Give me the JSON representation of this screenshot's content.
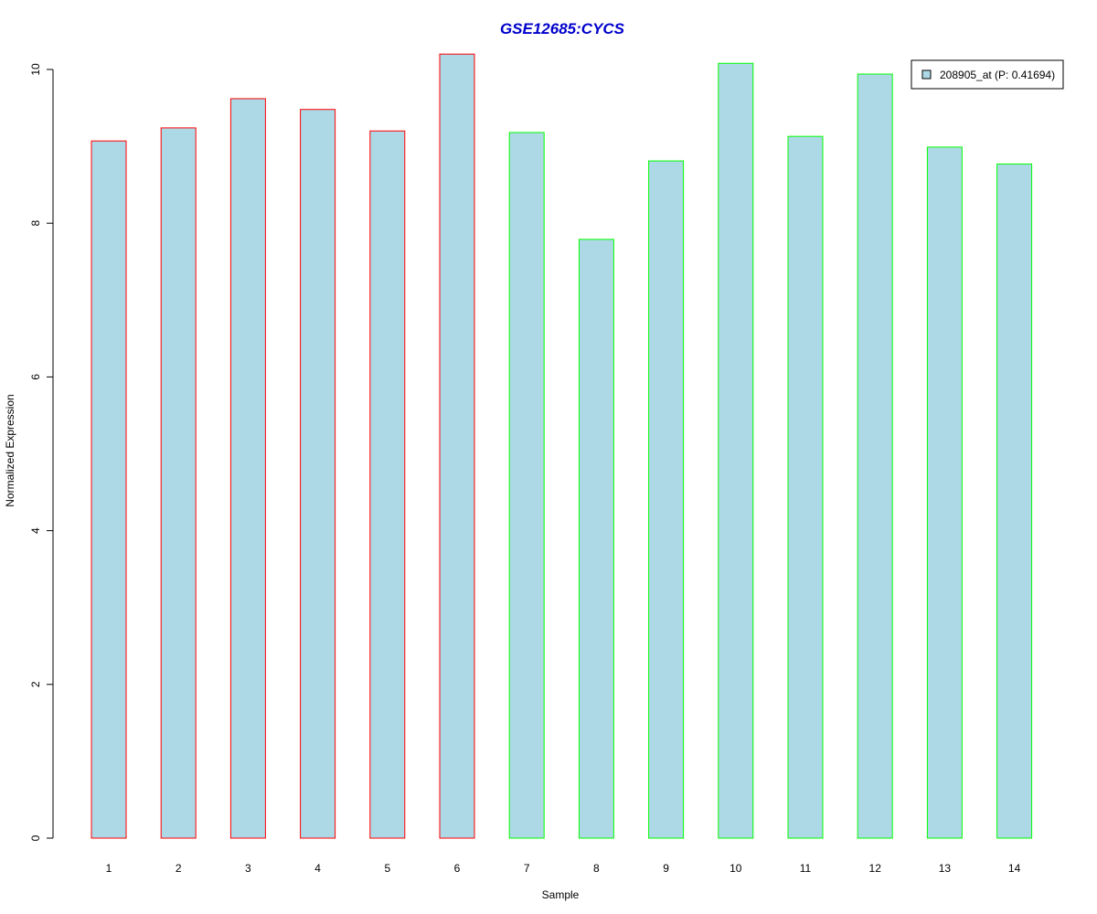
{
  "chart_data": {
    "type": "bar",
    "title": "GSE12685:CYCS",
    "title_color": "#0000cc",
    "xlabel": "Sample",
    "ylabel": "Normalized Expression",
    "ylim": [
      0,
      10.2
    ],
    "yticks": [
      0,
      2,
      4,
      6,
      8,
      10
    ],
    "grid": false,
    "legend_position": "top-right",
    "categories": [
      "1",
      "2",
      "3",
      "4",
      "5",
      "6",
      "7",
      "8",
      "9",
      "10",
      "11",
      "12",
      "13",
      "14"
    ],
    "series": [
      {
        "name": "208905_at (P: 0.41694)",
        "values": [
          9.07,
          9.24,
          9.62,
          9.48,
          9.2,
          10.2,
          9.18,
          7.79,
          8.81,
          10.08,
          9.13,
          9.94,
          8.99,
          8.77
        ],
        "fill": "#add8e6",
        "border_colors": [
          "#ff0000",
          "#ff0000",
          "#ff0000",
          "#ff0000",
          "#ff0000",
          "#ff0000",
          "#00ff00",
          "#00ff00",
          "#00ff00",
          "#00ff00",
          "#00ff00",
          "#00ff00",
          "#00ff00",
          "#00ff00"
        ]
      }
    ]
  }
}
